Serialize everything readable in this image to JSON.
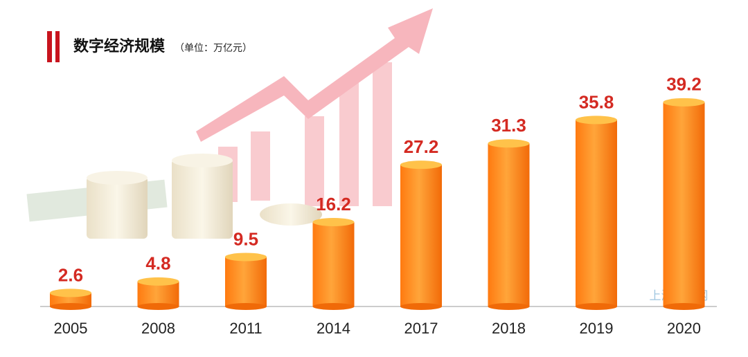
{
  "chart_data": {
    "type": "bar",
    "title": "数字经济规模",
    "subtitle": "（单位：万亿元）",
    "categories": [
      "2005",
      "2008",
      "2011",
      "2014",
      "2017",
      "2018",
      "2019",
      "2020"
    ],
    "values": [
      2.6,
      4.8,
      9.5,
      16.2,
      27.2,
      31.3,
      35.8,
      39.2
    ],
    "color": "#ff8c1a",
    "watermark": "上海世贸网"
  }
}
